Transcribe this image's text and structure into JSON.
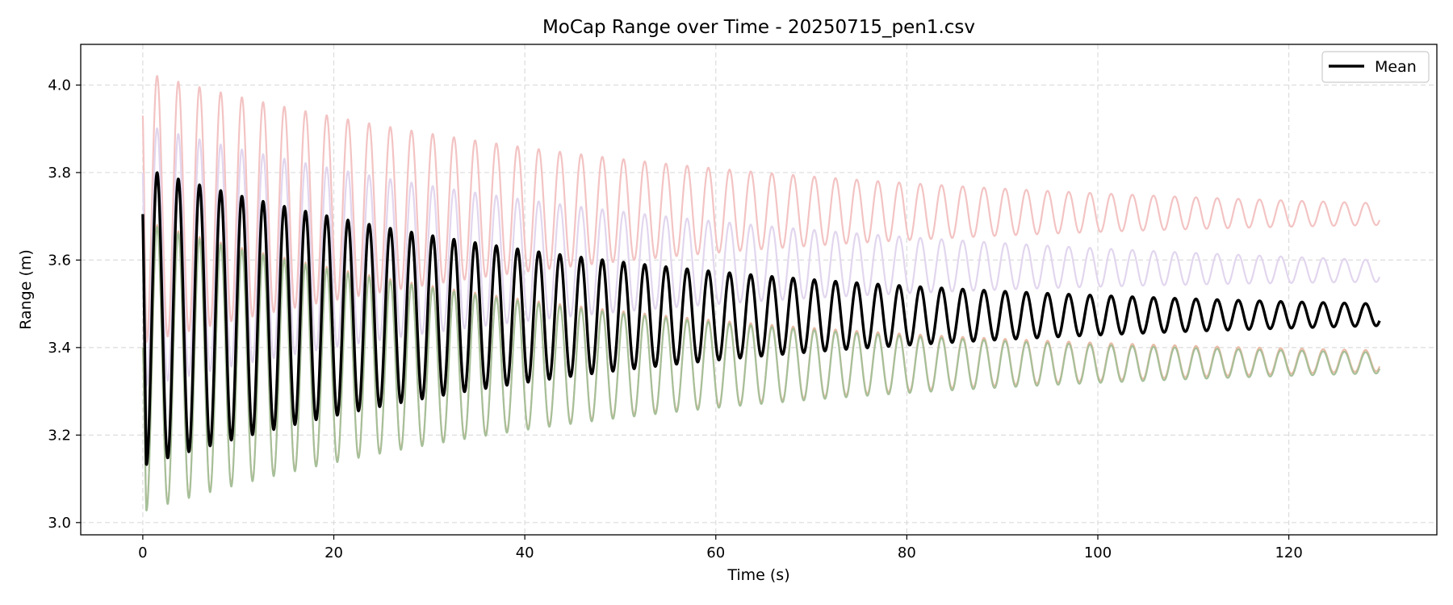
{
  "chart_data": {
    "type": "line",
    "title": "MoCap Range over Time - 20250715_pen1.csv",
    "xlabel": "Time (s)",
    "ylabel": "Range (m)",
    "xlim": [
      -6.5,
      135.5
    ],
    "ylim": [
      2.972,
      4.093
    ],
    "xticks": [
      0,
      20,
      40,
      60,
      80,
      100,
      120
    ],
    "xtick_labels": [
      "0",
      "20",
      "40",
      "60",
      "80",
      "100",
      "120"
    ],
    "yticks": [
      3.0,
      3.2,
      3.4,
      3.6,
      3.8,
      4.0
    ],
    "ytick_labels": [
      "3.0",
      "3.2",
      "3.4",
      "3.6",
      "3.8",
      "4.0"
    ],
    "grid": true,
    "legend": {
      "position": "top-right",
      "entries": [
        "Mean"
      ]
    },
    "time_range": [
      0,
      129.5
    ],
    "oscillation_period_s": 2.22,
    "series": [
      {
        "name": "",
        "color": "#f3c3c3",
        "width": 2.2,
        "center_start": 3.72,
        "center_end": 3.705,
        "amplitude_start": 0.31,
        "amplitude_end": 0.025,
        "initial_value": 3.93,
        "first_peak": 4.045
      },
      {
        "name": "",
        "color": "#e2d6ee",
        "width": 2.2,
        "center_start": 3.61,
        "center_end": 3.575,
        "amplitude_start": 0.3,
        "amplitude_end": 0.025,
        "initial_value": 3.8,
        "first_peak": 3.92
      },
      {
        "name": "",
        "color": "#e9b9a2",
        "width": 2.0,
        "center_start": 3.36,
        "center_end": 3.37,
        "amplitude_start": 0.33,
        "amplitude_end": 0.024,
        "initial_value": 3.4,
        "first_peak": 3.7
      },
      {
        "name": "",
        "color": "#a6bf98",
        "width": 2.2,
        "center_start": 3.355,
        "center_end": 3.365,
        "amplitude_start": 0.33,
        "amplitude_end": 0.024,
        "initial_value": 3.4,
        "first_peak": 3.7
      },
      {
        "name": "Mean",
        "color": "#000000",
        "width": 3.4,
        "center_start": 3.47,
        "center_end": 3.475,
        "amplitude_start": 0.34,
        "amplitude_end": 0.025,
        "initial_value": 3.705,
        "first_peak": 3.815
      }
    ]
  }
}
